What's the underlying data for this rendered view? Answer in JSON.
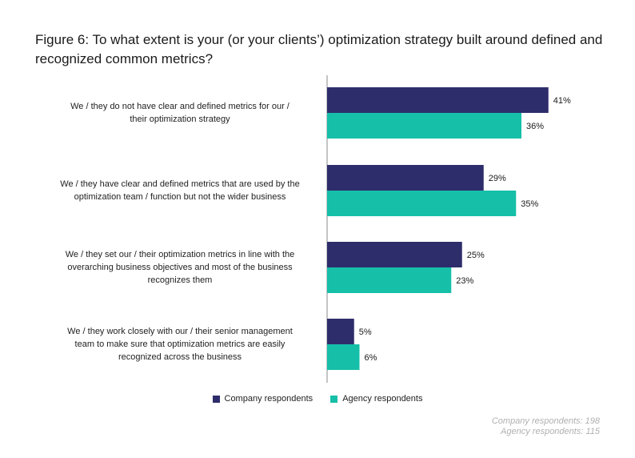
{
  "chart_data": {
    "type": "bar",
    "orientation": "horizontal",
    "title_lines": [
      "Figure 6: To what extent is your (or your clients’) optimization strategy built around defined and",
      "recognized common metrics?"
    ],
    "categories": [
      [
        "We / they do not have clear and defined metrics for our /",
        "their optimization strategy"
      ],
      [
        "We / they have clear and defined metrics that are used by the",
        "optimization team / function but not the wider business"
      ],
      [
        "We / they set our / their optimization metrics in line with the",
        "overarching business objectives and most of the business",
        "recognizes them"
      ],
      [
        "We / they work closely with our / their senior management",
        "team to make sure that optimization metrics are easily",
        "recognized across the business"
      ]
    ],
    "series": [
      {
        "name": "Company respondents",
        "color": "#2d2d6b",
        "values": [
          41,
          29,
          25,
          5
        ]
      },
      {
        "name": "Agency respondents",
        "color": "#16bfa8",
        "values": [
          36,
          35,
          23,
          6
        ]
      }
    ],
    "value_suffix": "%",
    "xlim": [
      0,
      100
    ],
    "legend_position": "bottom-center",
    "notes": [
      "Company respondents: 198",
      "Agency respondents: 115"
    ]
  }
}
